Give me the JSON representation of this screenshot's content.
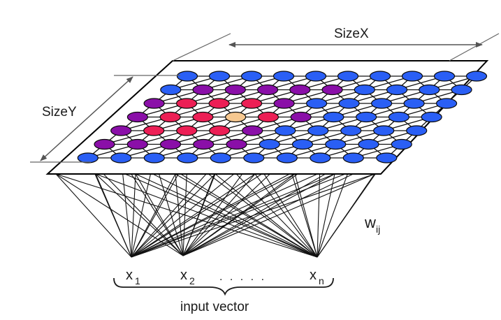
{
  "labels": {
    "size_x": "SizeX",
    "size_y": "SizeY",
    "weight_base": "w",
    "weight_sub": "ij",
    "input_vector": "input vector",
    "inputs": [
      {
        "base": "x",
        "sub": "1"
      },
      {
        "base": "x",
        "sub": "2"
      },
      {
        "base": "x",
        "sub": "n"
      }
    ],
    "ellipsis": ". . . . ."
  },
  "map": {
    "rows": 7,
    "cols": 10,
    "colors": {
      "blue": "#2a5ff5",
      "purple": "#8a0fa8",
      "red": "#ec1f55",
      "winner": "#f6c890",
      "grid_line": "#111111",
      "plane_fill": "#ffffff",
      "plane_edge": "#000000"
    },
    "grid": [
      [
        "B",
        "B",
        "B",
        "B",
        "B",
        "B",
        "B",
        "B",
        "B",
        "B"
      ],
      [
        "B",
        "P",
        "P",
        "P",
        "P",
        "P",
        "B",
        "B",
        "B",
        "B"
      ],
      [
        "P",
        "R",
        "R",
        "R",
        "P",
        "B",
        "B",
        "B",
        "B",
        "B"
      ],
      [
        "P",
        "R",
        "R",
        "W",
        "R",
        "P",
        "B",
        "B",
        "B",
        "B"
      ],
      [
        "P",
        "R",
        "R",
        "R",
        "P",
        "B",
        "B",
        "B",
        "B",
        "B"
      ],
      [
        "P",
        "P",
        "P",
        "P",
        "P",
        "B",
        "B",
        "B",
        "B",
        "B"
      ],
      [
        "B",
        "B",
        "B",
        "B",
        "B",
        "B",
        "B",
        "B",
        "B",
        "B"
      ]
    ]
  }
}
